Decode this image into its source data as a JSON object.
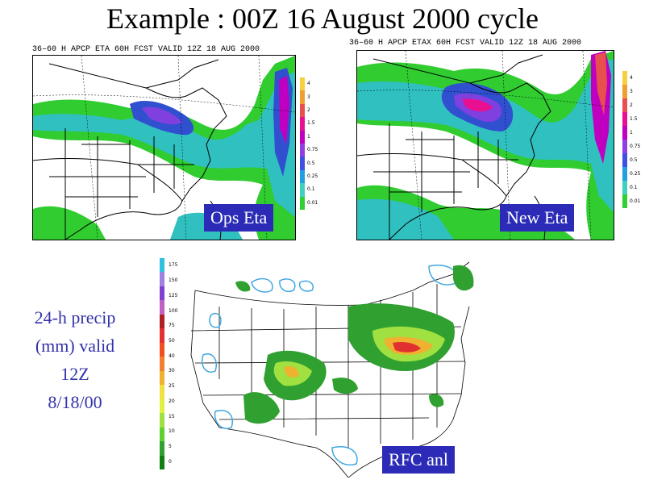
{
  "title": "Example : 00Z 16 August 2000 cycle",
  "panels": [
    {
      "header": "36–60 H APCP ETA 60H FCST VALID 12Z 18 AUG 2000",
      "label": "Ops Eta"
    },
    {
      "header": "36–60 H APCP ETAX 60H FCST VALID 12Z 18 AUG 2000",
      "label": "New Eta"
    },
    {
      "header": "",
      "label": "RFC anl"
    }
  ],
  "eta_colorbar": {
    "levels": [
      "4",
      "3",
      "2",
      "1.5",
      "1",
      "0.75",
      "0.5",
      "0.25",
      "0.1",
      "0.01"
    ],
    "colors": [
      "#f5d040",
      "#f0a030",
      "#e85050",
      "#e81090",
      "#c000c0",
      "#9040e0",
      "#4050e0",
      "#20a0e0",
      "#40d0c0",
      "#30d030"
    ]
  },
  "rfc_colorbar": {
    "levels": [
      "175",
      "150",
      "125",
      "100",
      "75",
      "50",
      "40",
      "30",
      "25",
      "20",
      "15",
      "10",
      "5",
      "0"
    ],
    "colors": [
      "#30c0e0",
      "#a080e0",
      "#8040d0",
      "#c060c0",
      "#b02020",
      "#e03030",
      "#f05020",
      "#f08030",
      "#f0b030",
      "#f0e040",
      "#e0f040",
      "#a0e040",
      "#60d030",
      "#30a030",
      "#108010"
    ]
  },
  "caption": [
    "24-h precip",
    "(mm) valid",
    "12Z",
    "8/18/00"
  ]
}
